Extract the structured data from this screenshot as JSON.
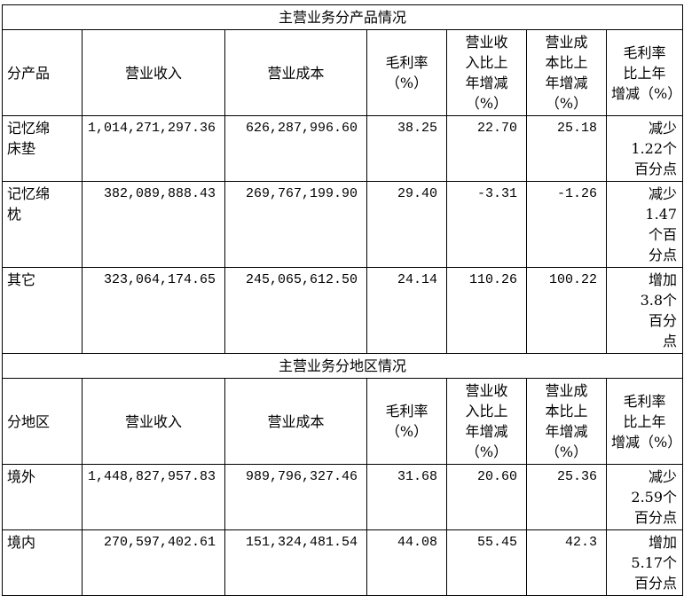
{
  "product_section": {
    "title": "主营业务分产品情况",
    "headers": [
      "分产品",
      "营业收入",
      "营业成本",
      "毛利率\n（%）",
      "营业收\n入比上\n年增减\n（%）",
      "营业成\n本比上\n年增减\n（%）",
      "毛利率\n比上年\n增减（%）"
    ],
    "rows": [
      {
        "name": "记忆绵\n床垫",
        "revenue": "1,014,271,297.36",
        "cost": "626,287,996.60",
        "margin": "38.25",
        "rev_change": "22.70",
        "cost_change": "25.18",
        "margin_change": "减少\n1.22个\n百分点"
      },
      {
        "name": "记忆绵\n枕",
        "revenue": "382,089,888.43",
        "cost": "269,767,199.90",
        "margin": "29.40",
        "rev_change": "-3.31",
        "cost_change": "-1.26",
        "margin_change": "减少\n1.47\n个百\n分点"
      },
      {
        "name": "其它",
        "revenue": "323,064,174.65",
        "cost": "245,065,612.50",
        "margin": "24.14",
        "rev_change": "110.26",
        "cost_change": "100.22",
        "margin_change": "增加\n3.8个\n百分\n点"
      }
    ]
  },
  "region_section": {
    "title": "主营业务分地区情况",
    "headers": [
      "分地区",
      "营业收入",
      "营业成本",
      "毛利率\n（%）",
      "营业收\n入比上\n年增减\n（%）",
      "营业成\n本比上\n年增减\n（%）",
      "毛利率\n比上年\n增减（%）"
    ],
    "rows": [
      {
        "name": "境外",
        "revenue": "1,448,827,957.83",
        "cost": "989,796,327.46",
        "margin": "31.68",
        "rev_change": "20.60",
        "cost_change": "25.36",
        "margin_change": "减少\n2.59个\n百分点"
      },
      {
        "name": "境内",
        "revenue": "270,597,402.61",
        "cost": "151,324,481.54",
        "margin": "44.08",
        "rev_change": "55.45",
        "cost_change": "42.3",
        "margin_change": "增加\n5.17个\n百分点"
      }
    ]
  }
}
